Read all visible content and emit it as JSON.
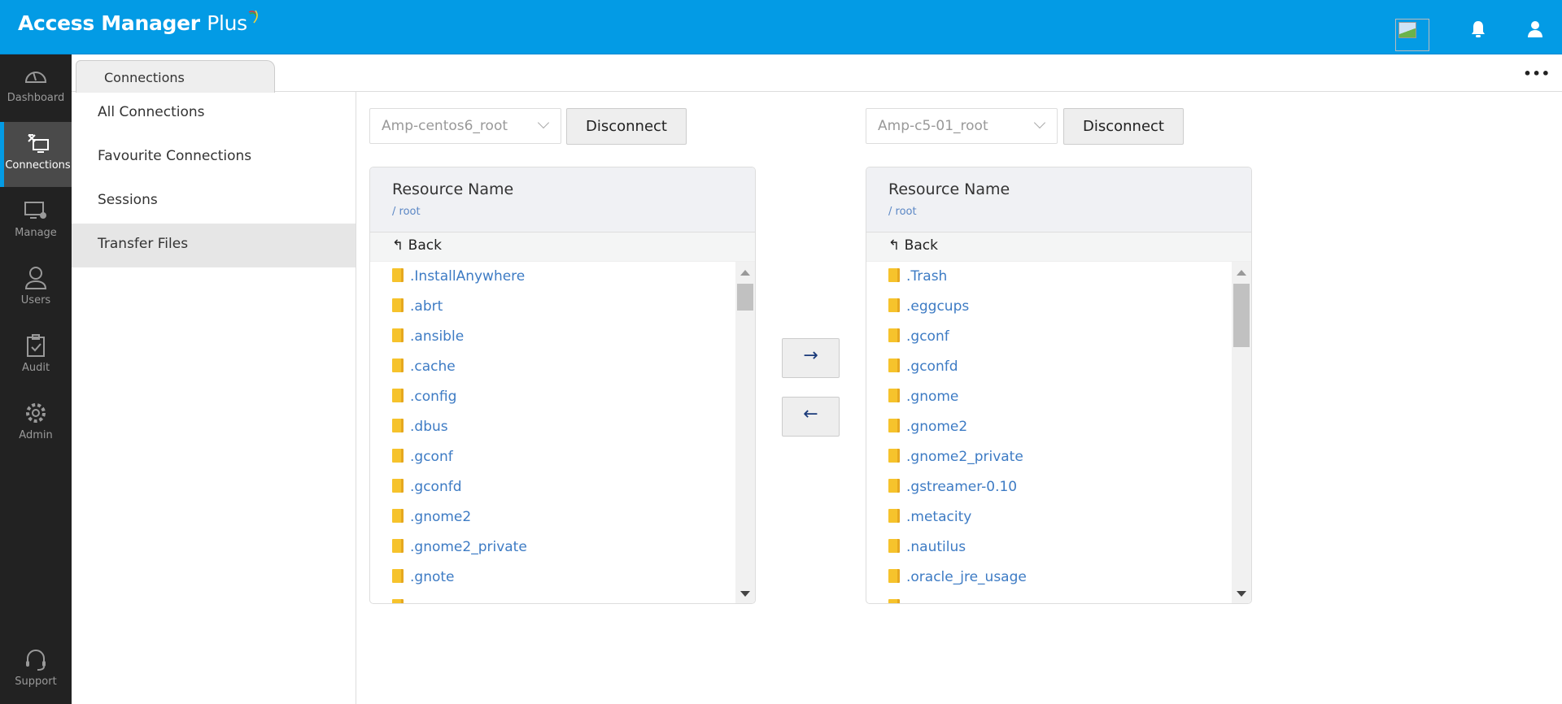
{
  "header": {
    "app_name": "Access Manager",
    "app_name_suffix": "Plus",
    "icons": [
      "broken-image-icon",
      "bell-icon",
      "user-icon"
    ]
  },
  "sidebar": {
    "items": [
      {
        "label": "Dashboard",
        "icon": "dashboard-gauge-icon"
      },
      {
        "label": "Connections",
        "icon": "connections-icon",
        "active": true
      },
      {
        "label": "Manage",
        "icon": "manage-monitor-gear-icon"
      },
      {
        "label": "Users",
        "icon": "user-icon"
      },
      {
        "label": "Audit",
        "icon": "clipboard-check-icon"
      },
      {
        "label": "Admin",
        "icon": "gear-icon"
      }
    ],
    "support": {
      "label": "Support",
      "icon": "headset-icon"
    }
  },
  "tabs": {
    "active": "Connections",
    "more_icon": "more-dots-icon"
  },
  "submenu": {
    "items": [
      "All Connections",
      "Favourite Connections",
      "Sessions",
      "Transfer Files"
    ],
    "selected": "Transfer Files"
  },
  "left": {
    "select_value": "Amp-centos6_root",
    "disconnect": "Disconnect",
    "title": "Resource Name",
    "path": "/ root",
    "back": "Back",
    "files": [
      ".InstallAnywhere",
      ".abrt",
      ".ansible",
      ".cache",
      ".config",
      ".dbus",
      ".gconf",
      ".gconfd",
      ".gnome2",
      ".gnome2_private",
      ".gnote"
    ]
  },
  "right": {
    "select_value": "Amp-c5-01_root",
    "disconnect": "Disconnect",
    "title": "Resource Name",
    "path": "/ root",
    "back": "Back",
    "files": [
      ".Trash",
      ".eggcups",
      ".gconf",
      ".gconfd",
      ".gnome",
      ".gnome2",
      ".gnome2_private",
      ".gstreamer-0.10",
      ".metacity",
      ".nautilus",
      ".oracle_jre_usage"
    ]
  },
  "transfer": {
    "right_arrow": "→",
    "left_arrow": "←"
  },
  "colors": {
    "brand": "#039be5",
    "sidebar": "#222222",
    "link": "#3d7bc4",
    "folder": "#f6c32c"
  }
}
